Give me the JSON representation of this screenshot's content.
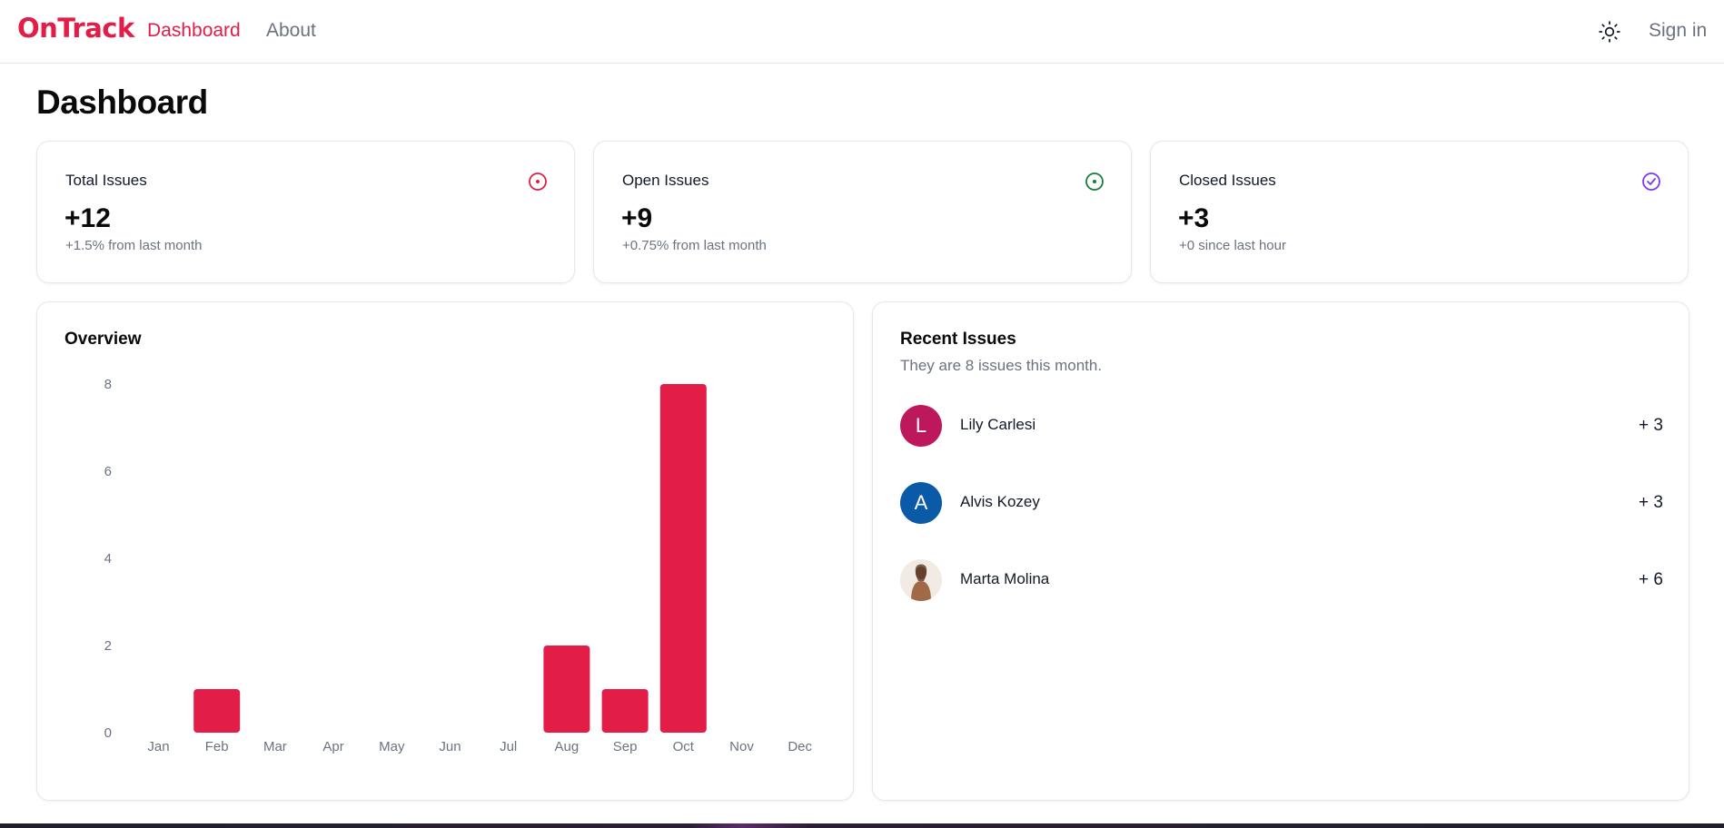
{
  "nav": {
    "logo": "OnTrack",
    "links": [
      "Dashboard",
      "About"
    ],
    "signin": "Sign in",
    "theme_icon": "sun-icon"
  },
  "page": {
    "title": "Dashboard"
  },
  "stats": [
    {
      "label": "Total Issues",
      "value": "+12",
      "sub": "+1.5% from last month",
      "icon": "issue-circle-icon",
      "color": "#e11d48"
    },
    {
      "label": "Open Issues",
      "value": "+9",
      "sub": "+0.75% from last month",
      "icon": "issue-open-icon",
      "color": "#15803d"
    },
    {
      "label": "Closed Issues",
      "value": "+3",
      "sub": "+0 since last hour",
      "icon": "check-circle-icon",
      "color": "#7c3aed"
    }
  ],
  "overview": {
    "title": "Overview"
  },
  "chart_data": {
    "type": "bar",
    "categories": [
      "Jan",
      "Feb",
      "Mar",
      "Apr",
      "May",
      "Jun",
      "Jul",
      "Aug",
      "Sep",
      "Oct",
      "Nov",
      "Dec"
    ],
    "values": [
      0,
      1,
      0,
      0,
      0,
      0,
      0,
      2,
      1,
      8,
      0,
      0
    ],
    "yticks": [
      "0",
      "2",
      "4",
      "6",
      "8"
    ],
    "ylim": [
      0,
      8
    ],
    "title": "Overview",
    "color": "#e11d48"
  },
  "recent": {
    "title": "Recent Issues",
    "subtitle": "They are 8 issues this month.",
    "items": [
      {
        "initial": "L",
        "name": "Lily Carlesi",
        "count": "+ 3",
        "color": "#be185d"
      },
      {
        "initial": "A",
        "name": "Alvis Kozey",
        "count": "+ 3",
        "color": "#0b5aa8"
      },
      {
        "initial": "",
        "name": "Marta Molina",
        "count": "+ 6",
        "color": "#e7d5c6"
      }
    ]
  }
}
